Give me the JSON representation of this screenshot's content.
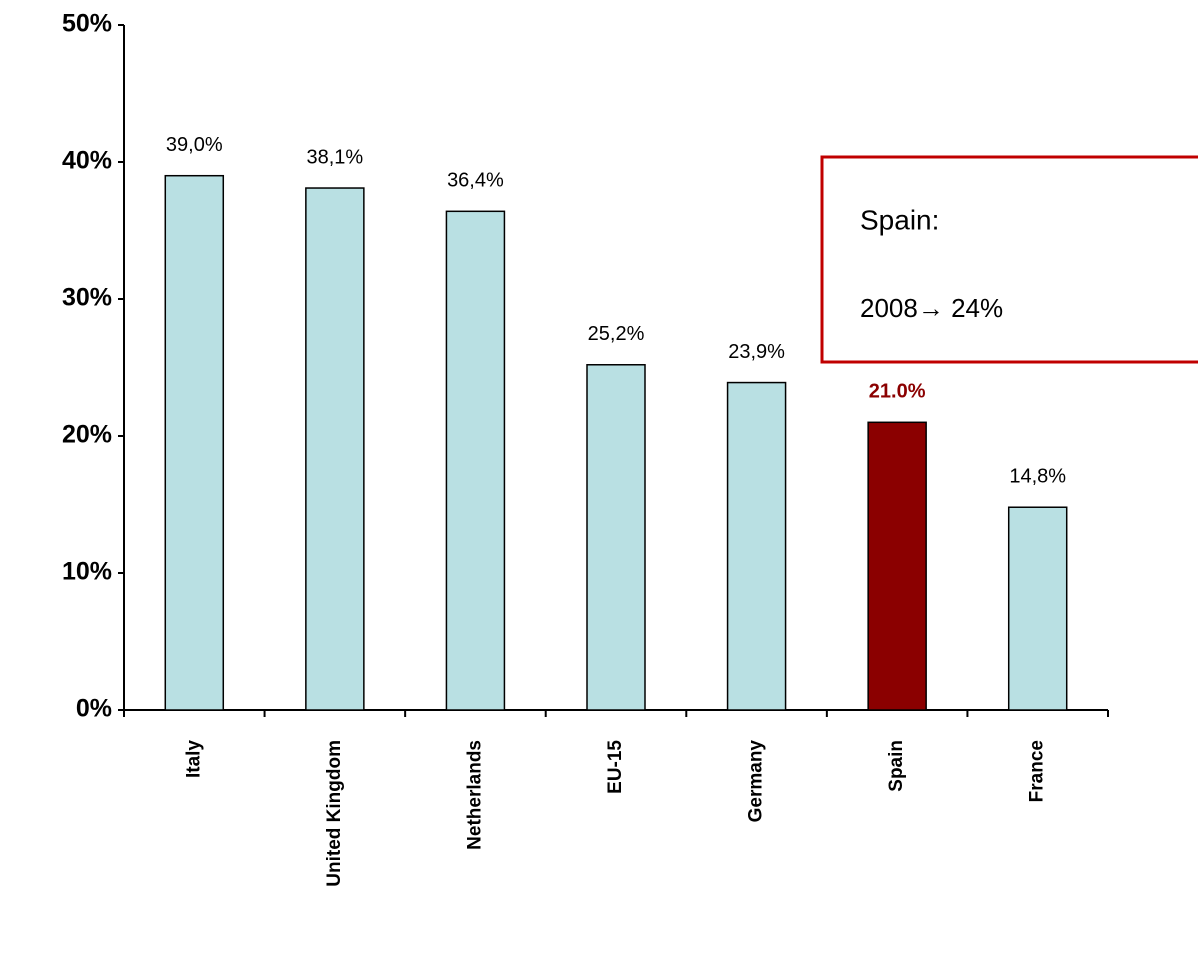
{
  "chart_data": {
    "type": "bar",
    "categories": [
      "Italy",
      "United Kingdom",
      "Netherlands",
      "EU-15",
      "Germany",
      "Spain",
      "France"
    ],
    "values": [
      39.0,
      38.1,
      36.4,
      25.2,
      23.9,
      21.0,
      14.8
    ],
    "value_labels": [
      "39,0%",
      "38,1%",
      "36,4%",
      "25,2%",
      "23,9%",
      "21.0%",
      "14,8%"
    ],
    "colors": [
      "#b9e0e3",
      "#b9e0e3",
      "#b9e0e3",
      "#b9e0e3",
      "#b9e0e3",
      "#8b0000",
      "#b9e0e3"
    ],
    "value_label_colors": [
      "#000000",
      "#000000",
      "#000000",
      "#000000",
      "#000000",
      "#8b0000",
      "#000000"
    ],
    "ylim": [
      0,
      50
    ],
    "yticks": [
      {
        "value": 0,
        "label": "0%"
      },
      {
        "value": 10,
        "label": "10%"
      },
      {
        "value": 20,
        "label": "20%"
      },
      {
        "value": 30,
        "label": "30%"
      },
      {
        "value": 40,
        "label": "40%"
      },
      {
        "value": 50,
        "label": "50%"
      }
    ],
    "grid": false,
    "annotations": [
      "Spain:",
      "2008→ 24%"
    ],
    "annotation_color": "#c00000"
  }
}
